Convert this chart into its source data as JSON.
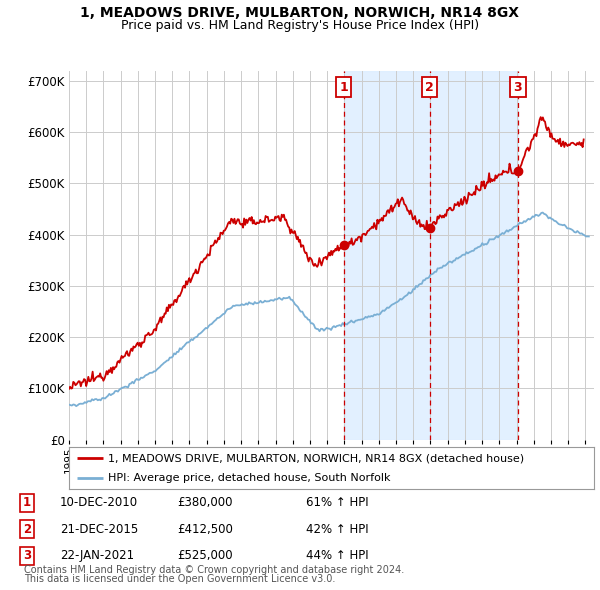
{
  "title1": "1, MEADOWS DRIVE, MULBARTON, NORWICH, NR14 8GX",
  "title2": "Price paid vs. HM Land Registry's House Price Index (HPI)",
  "legend_line1": "1, MEADOWS DRIVE, MULBARTON, NORWICH, NR14 8GX (detached house)",
  "legend_line2": "HPI: Average price, detached house, South Norfolk",
  "footnote1": "Contains HM Land Registry data © Crown copyright and database right 2024.",
  "footnote2": "This data is licensed under the Open Government Licence v3.0.",
  "transactions": [
    {
      "num": 1,
      "date": "10-DEC-2010",
      "price": "£380,000",
      "change": "61% ↑ HPI",
      "year": 2010.95,
      "value": 380000
    },
    {
      "num": 2,
      "date": "21-DEC-2015",
      "price": "£412,500",
      "change": "42% ↑ HPI",
      "year": 2015.95,
      "value": 412500
    },
    {
      "num": 3,
      "date": "22-JAN-2021",
      "price": "£525,000",
      "change": "44% ↑ HPI",
      "year": 2021.08,
      "value": 525000
    }
  ],
  "red_color": "#cc0000",
  "blue_color": "#7aafd4",
  "bg_color": "#ffffff",
  "grid_color": "#cccccc",
  "shade_color": "#ddeeff",
  "ylim": [
    0,
    720000
  ],
  "xmin": 1995.0,
  "xmax": 2025.5
}
